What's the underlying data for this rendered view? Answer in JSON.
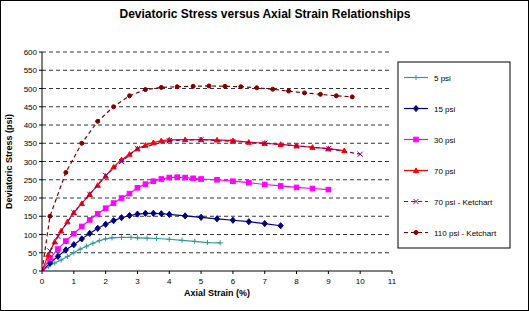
{
  "chart_data": {
    "type": "line",
    "title": "Deviatoric Stress versus Axial Strain Relationships",
    "x_label": "Axial Strain (%)",
    "y_label": "Deviatoric Stress (psi)",
    "xlim": [
      0,
      11
    ],
    "xticks": [
      0,
      1,
      2,
      3,
      4,
      5,
      6,
      7,
      8,
      9,
      10,
      11
    ],
    "ylim": [
      0,
      600
    ],
    "yticks": [
      0,
      50,
      100,
      150,
      200,
      250,
      300,
      350,
      400,
      450,
      500,
      550,
      600
    ],
    "grid": true,
    "legend": "right",
    "series": [
      {
        "name": "5 psi",
        "color": "#339999",
        "marker": "plus",
        "line_style": "solid",
        "x": [
          0,
          0.2,
          0.4,
          0.6,
          0.8,
          1.0,
          1.2,
          1.4,
          1.6,
          1.8,
          2.0,
          2.2,
          2.5,
          2.8,
          3.0,
          3.3,
          3.6,
          4.0,
          4.4,
          4.8,
          5.2,
          5.6
        ],
        "values": [
          0,
          12,
          22,
          30,
          40,
          50,
          60,
          68,
          76,
          83,
          88,
          91,
          92,
          92,
          91,
          90,
          89,
          87,
          84,
          81,
          78,
          77
        ]
      },
      {
        "name": "15 psi",
        "color": "#000080",
        "marker": "diamond",
        "line_style": "solid",
        "x": [
          0,
          0.25,
          0.5,
          0.75,
          1.0,
          1.25,
          1.5,
          1.75,
          2.0,
          2.25,
          2.5,
          2.75,
          3.0,
          3.25,
          3.5,
          3.75,
          4.0,
          4.5,
          5.0,
          5.5,
          6.0,
          6.5,
          7.0,
          7.5
        ],
        "values": [
          0,
          22,
          40,
          58,
          72,
          88,
          103,
          117,
          128,
          138,
          146,
          152,
          156,
          158,
          158,
          157,
          155,
          151,
          147,
          143,
          139,
          135,
          130,
          124
        ]
      },
      {
        "name": "30 psi",
        "color": "#ff00ff",
        "marker": "square",
        "line_style": "solid",
        "x": [
          0,
          0.25,
          0.5,
          0.75,
          1,
          1.25,
          1.5,
          1.75,
          2,
          2.25,
          2.5,
          2.75,
          3,
          3.25,
          3.5,
          3.75,
          4,
          4.25,
          4.5,
          4.75,
          5,
          5.5,
          6,
          6.5,
          7,
          7.5,
          8,
          8.5,
          9
        ],
        "values": [
          0,
          35,
          60,
          82,
          102,
          122,
          140,
          157,
          172,
          186,
          200,
          212,
          228,
          238,
          246,
          252,
          256,
          257,
          256,
          254,
          252,
          250,
          246,
          242,
          237,
          233,
          229,
          226,
          223
        ]
      },
      {
        "name": "70 psi",
        "color": "#ff0000",
        "marker": "triangle",
        "line_style": "solid",
        "x": [
          0,
          0.2,
          0.4,
          0.6,
          0.8,
          1,
          1.25,
          1.5,
          1.75,
          2,
          2.25,
          2.5,
          2.75,
          3,
          3.25,
          3.5,
          3.75,
          4,
          4.5,
          5,
          5.5,
          6,
          6.5,
          7,
          7.5,
          8,
          8.5,
          9,
          9.5
        ],
        "values": [
          0,
          45,
          80,
          110,
          135,
          160,
          185,
          210,
          235,
          260,
          285,
          305,
          320,
          335,
          345,
          352,
          357,
          359,
          360,
          360,
          359,
          357,
          353,
          350,
          347,
          343,
          339,
          335,
          330
        ]
      },
      {
        "name": "70 psi - Ketchart",
        "color": "#800080",
        "marker": "x",
        "line_style": "dashed",
        "x": [
          0.25,
          0.5,
          1,
          1.5,
          2,
          2.5,
          3,
          4,
          5,
          6,
          7,
          8,
          9,
          10
        ],
        "values": [
          55,
          95,
          160,
          210,
          262,
          300,
          335,
          357,
          360,
          355,
          350,
          343,
          335,
          320
        ]
      },
      {
        "name": "110 psi - Ketchart",
        "color": "#800000",
        "marker": "circle",
        "line_style": "dashed",
        "x": [
          0,
          0.25,
          0.75,
          1.25,
          1.75,
          2.25,
          2.75,
          3.25,
          3.75,
          4.25,
          4.75,
          5.25,
          5.75,
          6.25,
          6.75,
          7.25,
          7.75,
          8.25,
          8.75,
          9.25,
          9.75
        ],
        "values": [
          0,
          150,
          270,
          350,
          410,
          450,
          480,
          497,
          503,
          505,
          506,
          507,
          506,
          505,
          502,
          498,
          493,
          488,
          484,
          480,
          477
        ]
      }
    ]
  }
}
